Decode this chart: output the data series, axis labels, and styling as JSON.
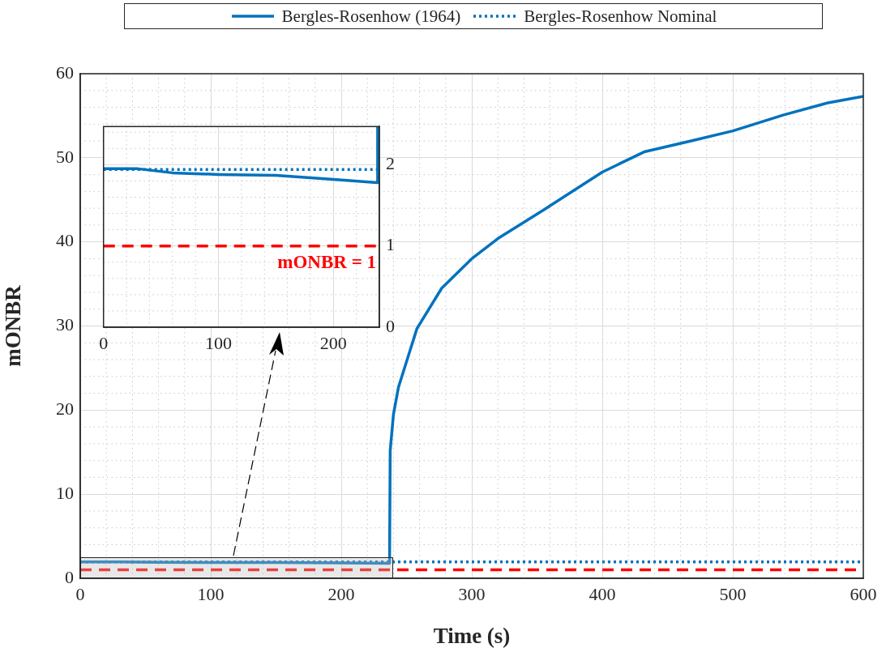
{
  "chart_data": [
    {
      "type": "line",
      "xlabel": "Time (s)",
      "ylabel": "mONBR",
      "xlim": [
        0,
        600
      ],
      "ylim": [
        0,
        60
      ],
      "xticks": [
        0,
        100,
        200,
        300,
        400,
        500,
        600
      ],
      "yticks": [
        0,
        10,
        20,
        30,
        40,
        50,
        60
      ],
      "grid": true,
      "legend": "top",
      "series": [
        {
          "name": "Bergles-Rosenhow (1964)",
          "color": "#0072bd",
          "line_style": "solid",
          "x": [
            0,
            30,
            60,
            100,
            150,
            200,
            237,
            237.5,
            240,
            243.8,
            258,
            277,
            300,
            320,
            356,
            400,
            432,
            468,
            500,
            539,
            572,
            600
          ],
          "values": [
            1.95,
            1.95,
            1.9,
            1.88,
            1.87,
            1.82,
            1.78,
            15.2,
            19.5,
            22.7,
            29.7,
            34.5,
            38.0,
            40.4,
            43.9,
            48.3,
            50.7,
            52.0,
            53.2,
            55.1,
            56.5,
            57.3
          ]
        },
        {
          "name": "Bergles-Rosenhow Nominal",
          "color": "#0072bd",
          "line_style": "dotted",
          "x": [
            0,
            600
          ],
          "values": [
            1.94,
            1.94
          ]
        }
      ],
      "ref_lines": [
        {
          "axis": "y",
          "value": 1,
          "color": "#ff0000",
          "line_style": "dashed"
        }
      ]
    },
    {
      "type": "line",
      "xlim": [
        0,
        240
      ],
      "ylim": [
        0,
        2.47
      ],
      "xticks": [
        0,
        100,
        200
      ],
      "yticks": [
        0,
        1,
        2
      ],
      "grid": true,
      "series": [
        {
          "color": "#0072bd",
          "line_style": "solid",
          "x": [
            0,
            30,
            60,
            100,
            150,
            200,
            238,
            238.5
          ],
          "values": [
            1.95,
            1.95,
            1.9,
            1.88,
            1.87,
            1.82,
            1.78,
            2.47
          ]
        },
        {
          "color": "#0072bd",
          "line_style": "dotted",
          "x": [
            0,
            240
          ],
          "values": [
            1.94,
            1.94
          ]
        }
      ],
      "ref_lines": [
        {
          "axis": "y",
          "value": 1,
          "label": "mONBR = 1",
          "color": "#ff0000",
          "line_style": "dashed"
        }
      ]
    }
  ]
}
